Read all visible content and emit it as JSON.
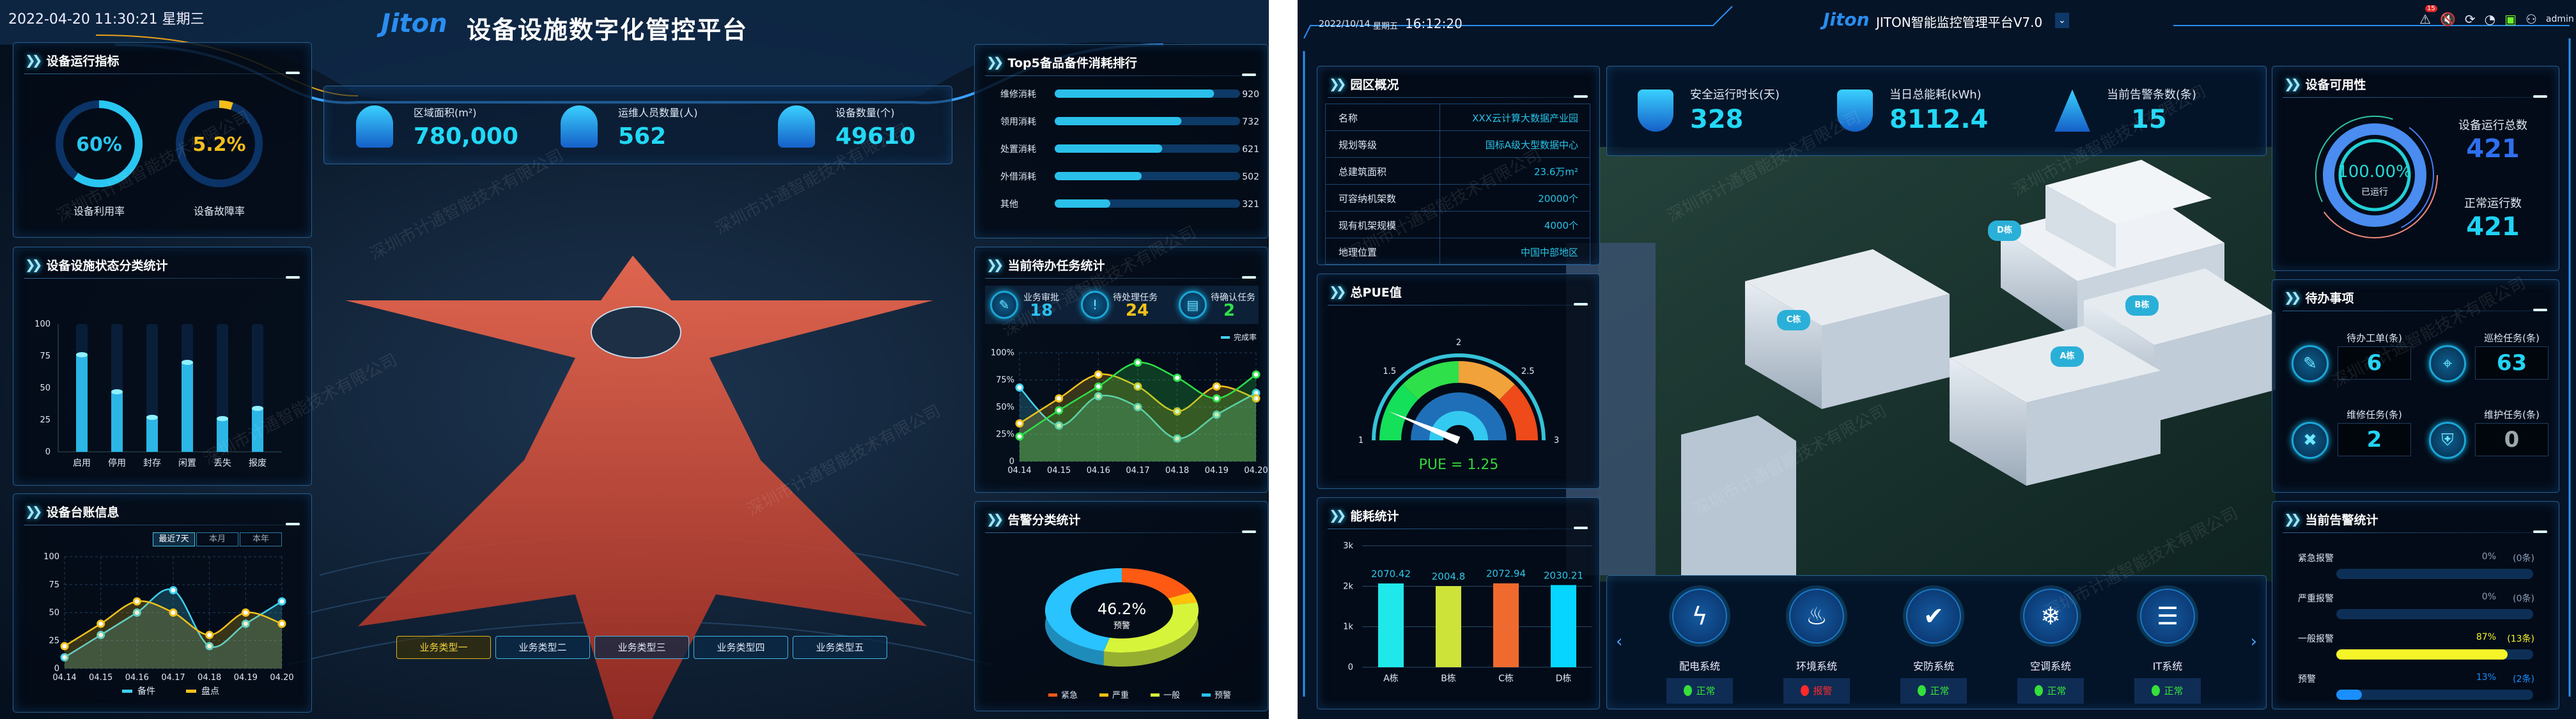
{
  "watermark": "深圳市计通智能技术有限公司",
  "left": {
    "datetime": "2022-04-20 11:30:21  星期三",
    "logo": "Jiton",
    "title": "设备设施数字化管控平台",
    "panels": {
      "indicators": "设备运行指标",
      "status": "设备设施状态分类统计",
      "ledger": "设备台账信息",
      "top5": "Top5备品备件消耗排行",
      "tasks": "当前待办任务统计",
      "alarms": "告警分类统计"
    },
    "indicators": [
      {
        "label": "设备利用率",
        "value_text": "60%",
        "value": 60,
        "color": "#29c6f0"
      },
      {
        "label": "设备故障率",
        "value_text": "5.2%",
        "value": 5.2,
        "color": "#f3be1a"
      }
    ],
    "stats": [
      {
        "label": "区域面积(m²)",
        "value": "780,000",
        "icon": "building-icon"
      },
      {
        "label": "运维人员数量(人)",
        "value": "562",
        "icon": "worker-icon"
      },
      {
        "label": "设备数量(个)",
        "value": "49610",
        "icon": "server-icon"
      }
    ],
    "ledger_ranges": [
      "最近7天",
      "本月",
      "本年"
    ],
    "ledger_active": 0,
    "task_kpis": [
      {
        "label": "业务审批",
        "value": "18",
        "color": "#27bff0",
        "icon": "approval-icon"
      },
      {
        "label": "待处理任务",
        "value": "24",
        "color": "#f3c21a",
        "icon": "exclamation-icon"
      },
      {
        "label": "待确认任务",
        "value": "2",
        "color": "#2fe04a",
        "icon": "confirm-icon"
      }
    ],
    "business_types": [
      "业务类型一",
      "业务类型二",
      "业务类型三",
      "业务类型四",
      "业务类型五"
    ],
    "business_active": 0
  },
  "right": {
    "date": "2022/10/14",
    "weekday": "星期五",
    "time": "16:12:20",
    "logo": "Jiton",
    "title": "JITON智能监控管理平台V7.0",
    "alert_badge": "15",
    "user": "admin",
    "panels": {
      "park": "园区概况",
      "pue": "总PUE值",
      "energy": "能耗统计",
      "availability": "设备可用性",
      "todo": "待办事项",
      "alarm_stats": "当前告警统计"
    },
    "park_info": [
      {
        "key": "名称",
        "value": "XXX云计算大数据产业园"
      },
      {
        "key": "规划等级",
        "value": "国标A级大型数据中心"
      },
      {
        "key": "总建筑面积",
        "value": "23.6万m²"
      },
      {
        "key": "可容纳机架数",
        "value": "20000个"
      },
      {
        "key": "现有机架规模",
        "value": "4000个"
      },
      {
        "key": "地理位置",
        "value": "中国中部地区"
      }
    ],
    "stats": [
      {
        "label": "安全运行时长(天)",
        "value": "328",
        "icon": "uptime-icon"
      },
      {
        "label": "当日总能耗(kWh)",
        "value": "8112.4",
        "icon": "lightning-icon"
      },
      {
        "label": "当前告警条数(条)",
        "value": "15",
        "icon": "warning-icon"
      }
    ],
    "building_labels": [
      "D栋",
      "C栋",
      "B栋",
      "A栋"
    ],
    "availability": {
      "percent_text": "100.00%",
      "percent": 100,
      "caption": "已运行",
      "total_label": "设备运行总数",
      "total": "421",
      "normal_label": "正常运行数",
      "normal": "421"
    },
    "todo": [
      {
        "label": "待办工单(条)",
        "value": "6",
        "icon": "work-order-icon",
        "glyph": "✎"
      },
      {
        "label": "巡检任务(条)",
        "value": "63",
        "icon": "location-pin-icon",
        "glyph": "⌖"
      },
      {
        "label": "维修任务(条)",
        "value": "2",
        "icon": "wrench-icon",
        "glyph": "✖"
      },
      {
        "label": "维护任务(条)",
        "value": "0",
        "icon": "shield-icon",
        "glyph": "⛨"
      }
    ],
    "alarm_stats": [
      {
        "label": "紧急报警",
        "percent_text": "0%",
        "count": "(0条)",
        "percent": 0,
        "color": "#8aa0b8"
      },
      {
        "label": "严重报警",
        "percent_text": "0%",
        "count": "(0条)",
        "percent": 0,
        "color": "#8aa0b8"
      },
      {
        "label": "一般报警",
        "percent_text": "87%",
        "count": "(13条)",
        "percent": 87,
        "color": "#f5f52a"
      },
      {
        "label": "预警",
        "percent_text": "13%",
        "count": "(2条)",
        "percent": 13,
        "color": "#1a8fff"
      }
    ],
    "systems": [
      {
        "name": "配电系统",
        "status": "正常",
        "ok": true,
        "icon": "lightning-icon",
        "glyph": "ϟ"
      },
      {
        "name": "环境系统",
        "status": "报警",
        "ok": false,
        "icon": "water-temp-icon",
        "glyph": "♨"
      },
      {
        "name": "安防系统",
        "status": "正常",
        "ok": true,
        "icon": "shield-check-icon",
        "glyph": "✔"
      },
      {
        "name": "空调系统",
        "status": "正常",
        "ok": true,
        "icon": "snowflake-icon",
        "glyph": "❄"
      },
      {
        "name": "IT系统",
        "status": "正常",
        "ok": true,
        "icon": "server-rack-icon",
        "glyph": "☰"
      }
    ],
    "status_colors": {
      "ok": "#35e03a",
      "alarm": "#ff2a2a"
    }
  },
  "chart_data": [
    {
      "id": "status",
      "type": "bar",
      "categories": [
        "启用",
        "停用",
        "封存",
        "闲置",
        "丢失",
        "报废"
      ],
      "values": [
        76,
        47,
        27,
        70,
        26,
        34
      ],
      "ylim": [
        0,
        100
      ],
      "yticks": [
        0,
        25,
        50,
        75,
        100
      ]
    },
    {
      "id": "ledger",
      "type": "line",
      "categories": [
        "04.14",
        "04.15",
        "04.16",
        "04.17",
        "04.18",
        "04.19",
        "04.20"
      ],
      "ylim": [
        0,
        100
      ],
      "yticks": [
        0,
        25,
        50,
        75,
        100
      ],
      "grid": true,
      "legend": "bottom",
      "series": [
        {
          "name": "备件",
          "color": "#3fd0f0",
          "values": [
            10,
            30,
            50,
            70,
            20,
            40,
            60
          ]
        },
        {
          "name": "盘点",
          "color": "#f2c21c",
          "values": [
            20,
            40,
            60,
            50,
            30,
            50,
            40
          ]
        }
      ]
    },
    {
      "id": "top5",
      "type": "bar",
      "orientation": "horizontal",
      "categories": [
        "维修消耗",
        "领用消耗",
        "处置消耗",
        "外借消耗",
        "其他"
      ],
      "values": [
        920,
        732,
        621,
        502,
        321
      ],
      "xlim": [
        0,
        1070
      ]
    },
    {
      "id": "tasks",
      "type": "line",
      "categories": [
        "04.14",
        "04.15",
        "04.16",
        "04.17",
        "04.18",
        "04.19",
        "04.20"
      ],
      "ylim": [
        0,
        100
      ],
      "yticks": [
        "0",
        "25%",
        "50%",
        "75%",
        "100%"
      ],
      "legend_label": "完成率",
      "legend": "top-right",
      "series": [
        {
          "color": "#45d3f2",
          "values": [
            68,
            33,
            60,
            50,
            21,
            43,
            63
          ]
        },
        {
          "color": "#f2c21c",
          "values": [
            35,
            58,
            80,
            69,
            46,
            69,
            58
          ]
        },
        {
          "color": "#2fe04a",
          "values": [
            23,
            47,
            69,
            91,
            77,
            58,
            80
          ]
        }
      ]
    },
    {
      "id": "alarm_pie",
      "type": "pie",
      "center_value": "46.2%",
      "center_label": "预警",
      "legend": "bottom",
      "slices": [
        {
          "name": "紧急",
          "value": 18,
          "color": "#ff5a14"
        },
        {
          "name": "严重",
          "value": 4,
          "color": "#ffc10a"
        },
        {
          "name": "一般",
          "value": 31.8,
          "color": "#d6f53a"
        },
        {
          "name": "预警",
          "value": 46.2,
          "color": "#29c3ff"
        }
      ]
    },
    {
      "id": "energy",
      "type": "bar",
      "categories": [
        "A栋",
        "B栋",
        "C栋",
        "D栋"
      ],
      "values": [
        2070.42,
        2004.8,
        2072.94,
        2030.21
      ],
      "labels": [
        "2070.42",
        "2004.8",
        "2072.94",
        "2030.21"
      ],
      "colors": [
        "#20e8ea",
        "#cde33a",
        "#ef6a2e",
        "#06d6ff"
      ],
      "ylim": [
        0,
        3000
      ],
      "yticks": [
        "0",
        "1k",
        "2k",
        "3k"
      ],
      "grid": true
    },
    {
      "id": "pue",
      "type": "gauge",
      "min": 1,
      "max": 3,
      "ticks": [
        "1",
        "1.5",
        "2",
        "2.5",
        "3"
      ],
      "value": 1.25,
      "label": "PUE = 1.25"
    }
  ]
}
